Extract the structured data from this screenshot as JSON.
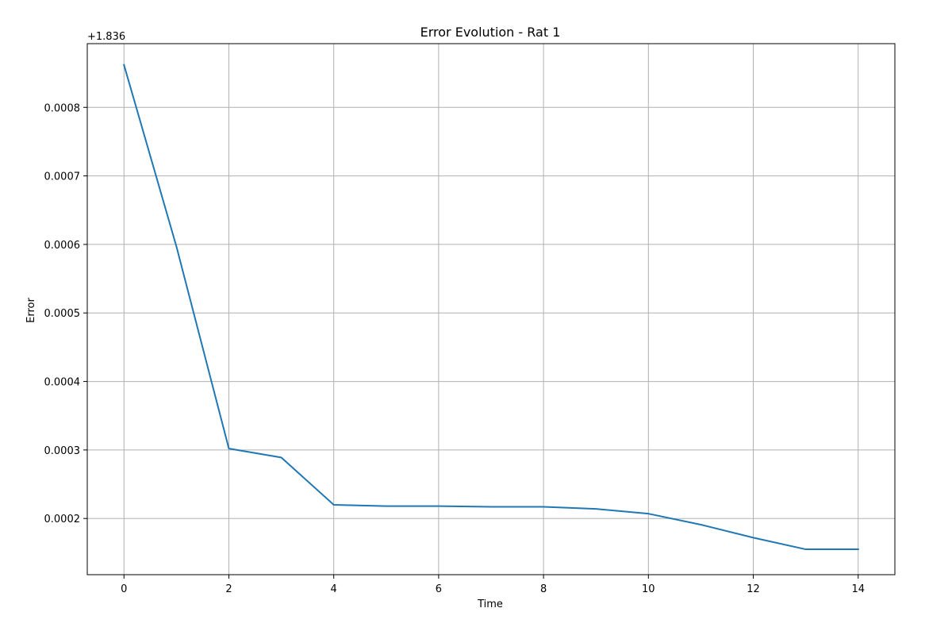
{
  "chart_data": {
    "type": "line",
    "title": "Error Evolution - Rat 1",
    "xlabel": "Time",
    "ylabel": "Error",
    "y_offset_label": "+1.836",
    "xlim": [
      -0.7,
      14.7
    ],
    "ylim": [
      0.000118,
      0.000893
    ],
    "xticks": [
      0,
      2,
      4,
      6,
      8,
      10,
      12,
      14
    ],
    "xtick_labels": [
      "0",
      "2",
      "4",
      "6",
      "8",
      "10",
      "12",
      "14"
    ],
    "yticks": [
      0.0002,
      0.0003,
      0.0004,
      0.0005,
      0.0006,
      0.0007,
      0.0008
    ],
    "ytick_labels": [
      "0.0002",
      "0.0003",
      "0.0004",
      "0.0005",
      "0.0006",
      "0.0007",
      "0.0008"
    ],
    "grid": true,
    "series": [
      {
        "color": "#1f77b4",
        "x": [
          0,
          1,
          2,
          3,
          4,
          5,
          6,
          7,
          8,
          9,
          10,
          11,
          12,
          13,
          14
        ],
        "y": [
          0.000862,
          0.000597,
          0.000302,
          0.000289,
          0.00022,
          0.000218,
          0.000218,
          0.000217,
          0.000217,
          0.000214,
          0.000207,
          0.000191,
          0.000172,
          0.000155,
          0.000155
        ]
      }
    ]
  }
}
